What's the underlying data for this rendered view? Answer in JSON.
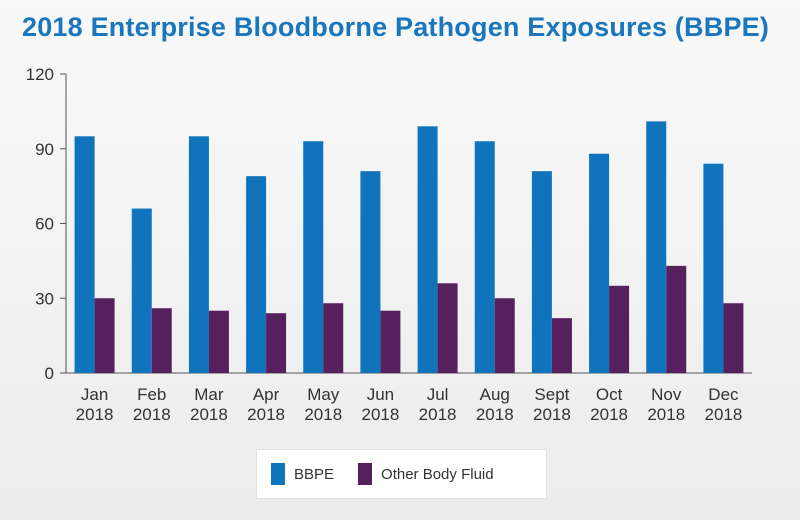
{
  "chart_data": {
    "type": "bar",
    "title": "2018 Enterprise Bloodborne Pathogen Exposures (BBPE)",
    "xlabel": "",
    "ylabel": "",
    "categories": [
      [
        "Jan",
        "2018"
      ],
      [
        "Feb",
        "2018"
      ],
      [
        "Mar",
        "2018"
      ],
      [
        "Apr",
        "2018"
      ],
      [
        "May",
        "2018"
      ],
      [
        "Jun",
        "2018"
      ],
      [
        "Jul",
        "2018"
      ],
      [
        "Aug",
        "2018"
      ],
      [
        "Sept",
        "2018"
      ],
      [
        "Oct",
        "2018"
      ],
      [
        "Nov",
        "2018"
      ],
      [
        "Dec",
        "2018"
      ]
    ],
    "series": [
      {
        "name": "BBPE",
        "color": "#0f74bb",
        "values": [
          95,
          66,
          95,
          79,
          93,
          81,
          99,
          93,
          81,
          88,
          101,
          84
        ]
      },
      {
        "name": "Other Body Fluid",
        "color": "#56205f",
        "values": [
          30,
          26,
          25,
          24,
          28,
          25,
          36,
          30,
          22,
          35,
          43,
          28
        ]
      }
    ],
    "ylim": [
      0,
      120
    ],
    "yticks": [
      0,
      30,
      60,
      90,
      120
    ],
    "grid": false,
    "legend_position": "bottom"
  }
}
